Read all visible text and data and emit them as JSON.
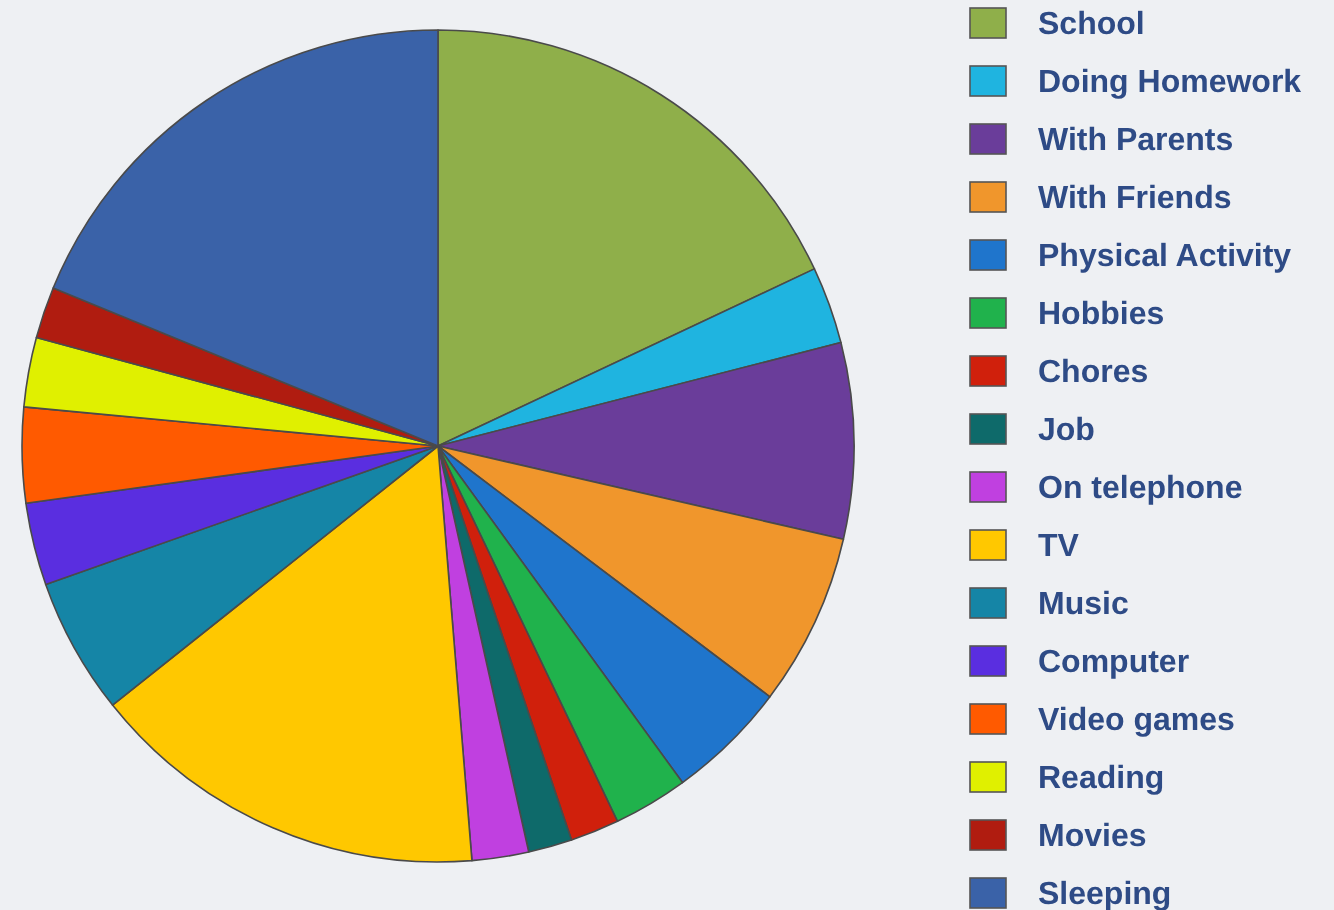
{
  "chart_data": {
    "type": "pie",
    "legend": "right",
    "categories": [
      "School",
      "Doing Homework",
      "With Parents",
      "With Friends",
      "Physical Activity",
      "Hobbies",
      "Chores",
      "Job",
      "On telephone",
      "TV",
      "Music",
      "Computer",
      "Video games",
      "Reading",
      "Movies",
      "Sleeping"
    ],
    "values": [
      18,
      3,
      7.6,
      6.7,
      4.7,
      2.9,
      1.9,
      1.7,
      2.2,
      15.6,
      5.3,
      3.2,
      3.7,
      2.7,
      2,
      18.8
    ],
    "colors": [
      "#8faf4a",
      "#1fb4e0",
      "#6a3d9a",
      "#f0962c",
      "#1f75cc",
      "#20b24c",
      "#d0200c",
      "#0e6a6a",
      "#c040e0",
      "#ffc800",
      "#1585a6",
      "#5a2ee0",
      "#ff5a00",
      "#e0f000",
      "#b01c10",
      "#3a62a8"
    ]
  }
}
